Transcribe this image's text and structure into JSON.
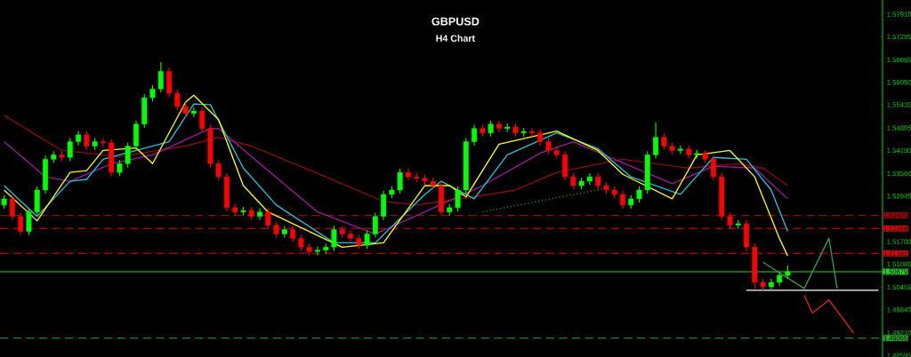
{
  "chart_data": {
    "type": "candlestick",
    "title": "GBPUSD",
    "subtitle": "H4 Chart",
    "categories": [
      null,
      null,
      null,
      null,
      null,
      null,
      null,
      null,
      null,
      null,
      null,
      null,
      null,
      null,
      null,
      null,
      null,
      null,
      null,
      null,
      null,
      null,
      null,
      null,
      null,
      null,
      null,
      null,
      null,
      null,
      null,
      null,
      null,
      null,
      null,
      null,
      null,
      null,
      null,
      null,
      null,
      null,
      null,
      null,
      null,
      null,
      null,
      null,
      null,
      null,
      null,
      null,
      null,
      null,
      null,
      null,
      null,
      null,
      null,
      null,
      null,
      null,
      null,
      null,
      null,
      null,
      null,
      null,
      null,
      null,
      null,
      null,
      null,
      null,
      null,
      null,
      null,
      null,
      null,
      null,
      null,
      null,
      null,
      null,
      null,
      null,
      null,
      null,
      null,
      null,
      null,
      null,
      null,
      null,
      null,
      null,
      null,
      null,
      null,
      null,
      null,
      null,
      null,
      null,
      null,
      null,
      null
    ],
    "ohlc": [
      [
        1.527,
        1.5297,
        1.526,
        1.5287
      ],
      [
        1.5287,
        1.5297,
        1.5229,
        1.5239
      ],
      [
        1.5239,
        1.5249,
        1.5188,
        1.5198
      ],
      [
        1.5198,
        1.5261,
        1.5188,
        1.5251
      ],
      [
        1.5251,
        1.5321,
        1.5241,
        1.5311
      ],
      [
        1.5311,
        1.5405,
        1.5301,
        1.5395
      ],
      [
        1.5395,
        1.5417,
        1.5385,
        1.5407
      ],
      [
        1.5407,
        1.5417,
        1.539,
        1.54
      ],
      [
        1.54,
        1.5453,
        1.539,
        1.5443
      ],
      [
        1.5443,
        1.5472,
        1.5433,
        1.5462
      ],
      [
        1.5462,
        1.5472,
        1.5421,
        1.5431
      ],
      [
        1.5431,
        1.5453,
        1.5421,
        1.5443
      ],
      [
        1.5443,
        1.5453,
        1.543,
        1.544
      ],
      [
        1.544,
        1.545,
        1.5349,
        1.5359
      ],
      [
        1.5359,
        1.5393,
        1.5349,
        1.5383
      ],
      [
        1.5383,
        1.5441,
        1.5373,
        1.5431
      ],
      [
        1.5431,
        1.5501,
        1.5421,
        1.5491
      ],
      [
        1.5491,
        1.5573,
        1.5481,
        1.5563
      ],
      [
        1.5563,
        1.5597,
        1.5553,
        1.5587
      ],
      [
        1.5587,
        1.566,
        1.5577,
        1.5635
      ],
      [
        1.5635,
        1.5645,
        1.5565,
        1.5575
      ],
      [
        1.5575,
        1.5585,
        1.5529,
        1.5539
      ],
      [
        1.5539,
        1.5549,
        1.551,
        1.552
      ],
      [
        1.552,
        1.5537,
        1.551,
        1.5527
      ],
      [
        1.5527,
        1.5537,
        1.5469,
        1.5479
      ],
      [
        1.5479,
        1.5489,
        1.5373,
        1.5383
      ],
      [
        1.5383,
        1.5393,
        1.5337,
        1.5347
      ],
      [
        1.5347,
        1.5357,
        1.5253,
        1.5263
      ],
      [
        1.5263,
        1.5273,
        1.5241,
        1.5251
      ],
      [
        1.5251,
        1.5265,
        1.5241,
        1.5255
      ],
      [
        1.5255,
        1.5265,
        1.5229,
        1.5239
      ],
      [
        1.5239,
        1.5261,
        1.5229,
        1.5251
      ],
      [
        1.5251,
        1.5261,
        1.5205,
        1.5215
      ],
      [
        1.5215,
        1.5225,
        1.5181,
        1.5191
      ],
      [
        1.5191,
        1.5213,
        1.5181,
        1.5203
      ],
      [
        1.5203,
        1.5213,
        1.5169,
        1.5179
      ],
      [
        1.5179,
        1.5189,
        1.5145,
        1.5155
      ],
      [
        1.5155,
        1.5165,
        1.5133,
        1.5143
      ],
      [
        1.5143,
        1.5157,
        1.5133,
        1.5147
      ],
      [
        1.5147,
        1.5165,
        1.5137,
        1.5155
      ],
      [
        1.5155,
        1.5213,
        1.5145,
        1.5203
      ],
      [
        1.5203,
        1.5213,
        1.5181,
        1.5191
      ],
      [
        1.5191,
        1.5201,
        1.5169,
        1.5179
      ],
      [
        1.5179,
        1.5189,
        1.515,
        1.516
      ],
      [
        1.516,
        1.5201,
        1.515,
        1.5191
      ],
      [
        1.5191,
        1.5249,
        1.5181,
        1.5239
      ],
      [
        1.5239,
        1.5309,
        1.5229,
        1.5299
      ],
      [
        1.5299,
        1.5321,
        1.5289,
        1.5311
      ],
      [
        1.5311,
        1.5369,
        1.5301,
        1.5359
      ],
      [
        1.5359,
        1.5369,
        1.5337,
        1.5347
      ],
      [
        1.5347,
        1.5357,
        1.5333,
        1.5343
      ],
      [
        1.5343,
        1.5353,
        1.5325,
        1.5335
      ],
      [
        1.5335,
        1.5345,
        1.5313,
        1.5323
      ],
      [
        1.5323,
        1.5333,
        1.5241,
        1.5251
      ],
      [
        1.5251,
        1.5273,
        1.5241,
        1.5263
      ],
      [
        1.5263,
        1.5321,
        1.5253,
        1.5311
      ],
      [
        1.5311,
        1.5453,
        1.5301,
        1.5443
      ],
      [
        1.5443,
        1.5489,
        1.5433,
        1.5479
      ],
      [
        1.5479,
        1.5489,
        1.5457,
        1.5467
      ],
      [
        1.5467,
        1.5501,
        1.5457,
        1.5491
      ],
      [
        1.5491,
        1.5501,
        1.5469,
        1.5479
      ],
      [
        1.5479,
        1.5493,
        1.5469,
        1.5483
      ],
      [
        1.5483,
        1.5493,
        1.5457,
        1.5467
      ],
      [
        1.5467,
        1.5481,
        1.5457,
        1.5471
      ],
      [
        1.5471,
        1.5481,
        1.5457,
        1.5467
      ],
      [
        1.5467,
        1.5477,
        1.5433,
        1.5443
      ],
      [
        1.5443,
        1.5453,
        1.5409,
        1.5419
      ],
      [
        1.5419,
        1.5429,
        1.5397,
        1.5407
      ],
      [
        1.5407,
        1.5417,
        1.5337,
        1.5347
      ],
      [
        1.5347,
        1.5357,
        1.5313,
        1.5323
      ],
      [
        1.5323,
        1.5345,
        1.5313,
        1.5335
      ],
      [
        1.5335,
        1.5357,
        1.5325,
        1.5347
      ],
      [
        1.5347,
        1.5357,
        1.5313,
        1.5323
      ],
      [
        1.5323,
        1.5333,
        1.5301,
        1.5311
      ],
      [
        1.5311,
        1.5321,
        1.5289,
        1.5299
      ],
      [
        1.5299,
        1.5309,
        1.526,
        1.527
      ],
      [
        1.527,
        1.5297,
        1.526,
        1.5287
      ],
      [
        1.5287,
        1.5321,
        1.5277,
        1.5311
      ],
      [
        1.5311,
        1.5417,
        1.5301,
        1.5407
      ],
      [
        1.5407,
        1.5495,
        1.5397,
        1.5455
      ],
      [
        1.5455,
        1.5465,
        1.5421,
        1.5431
      ],
      [
        1.5431,
        1.5441,
        1.5409,
        1.5419
      ],
      [
        1.5419,
        1.5433,
        1.5409,
        1.5423
      ],
      [
        1.5423,
        1.5433,
        1.5397,
        1.5407
      ],
      [
        1.5407,
        1.5421,
        1.5397,
        1.5411
      ],
      [
        1.5411,
        1.5421,
        1.5385,
        1.5395
      ],
      [
        1.5395,
        1.5405,
        1.5337,
        1.5347
      ],
      [
        1.5347,
        1.5357,
        1.5229,
        1.5239
      ],
      [
        1.5239,
        1.5249,
        1.5205,
        1.5215
      ],
      [
        1.5215,
        1.5229,
        1.5205,
        1.5219
      ],
      [
        1.5219,
        1.5229,
        1.5145,
        1.5155
      ],
      [
        1.5155,
        1.5165,
        1.5041,
        1.5059
      ],
      [
        1.5059,
        1.5069,
        1.5037,
        1.5047
      ],
      [
        1.5047,
        1.5069,
        1.5037,
        1.5059
      ],
      [
        1.5059,
        1.5088,
        1.5049,
        1.5078
      ],
      [
        1.5078,
        1.5105,
        1.5068,
        1.5088
      ],
      null,
      null,
      null,
      null,
      null,
      null,
      null,
      null,
      null,
      null,
      null
    ],
    "series": [
      {
        "type": "line",
        "color": "#8b0a0a",
        "values": [
          1.5515,
          null,
          null,
          null,
          null,
          null,
          null,
          1.5419,
          null,
          null,
          null,
          null,
          null,
          null,
          1.5402,
          null,
          null,
          null,
          null,
          null,
          null,
          null,
          1.5431,
          null,
          null,
          null,
          1.5455,
          null,
          null,
          null,
          1.5431,
          null,
          null,
          null,
          null,
          null,
          null,
          null,
          null,
          1.5347,
          null,
          null,
          null,
          null,
          null,
          null,
          1.528,
          null,
          null,
          null,
          1.527,
          null,
          null,
          null,
          null,
          null,
          1.5289,
          null,
          null,
          null,
          null,
          null,
          1.5311,
          null,
          null,
          null,
          null,
          1.5359,
          null,
          null,
          null,
          null,
          null,
          null,
          null,
          1.5395,
          null,
          null,
          null,
          null,
          null,
          null,
          null,
          1.5371,
          null,
          null,
          null,
          null,
          null,
          1.5383,
          null,
          null,
          1.5371,
          null,
          null,
          1.5323,
          null,
          null,
          null,
          null,
          null,
          null,
          null,
          null,
          null,
          null,
          null
        ]
      },
      {
        "type": "line",
        "color": "#9b1a9b",
        "values": [
          1.5443,
          null,
          null,
          null,
          null,
          1.5347,
          null,
          null,
          1.5335,
          null,
          null,
          null,
          null,
          1.5383,
          null,
          null,
          null,
          null,
          1.5407,
          null,
          null,
          null,
          null,
          null,
          null,
          1.5479,
          1.5479,
          null,
          null,
          null,
          null,
          1.5383,
          null,
          null,
          null,
          null,
          null,
          null,
          1.5251,
          null,
          null,
          null,
          null,
          null,
          null,
          1.5191,
          null,
          null,
          null,
          null,
          null,
          1.5251,
          null,
          null,
          null,
          null,
          null,
          null,
          1.5323,
          null,
          null,
          null,
          null,
          null,
          null,
          1.5412,
          null,
          null,
          null,
          1.5443,
          null,
          null,
          null,
          null,
          1.5395,
          null,
          null,
          null,
          null,
          null,
          null,
          1.5328,
          null,
          null,
          null,
          null,
          1.5376,
          null,
          null,
          null,
          null,
          1.5371,
          null,
          null,
          null,
          1.5287,
          null,
          null,
          null,
          null,
          null,
          null,
          null,
          null,
          null,
          null,
          null
        ]
      },
      {
        "type": "line",
        "color": "#22c4d8",
        "values": [
          1.5323,
          null,
          null,
          null,
          1.5239,
          null,
          null,
          null,
          1.5335,
          null,
          1.534,
          null,
          1.5395,
          null,
          null,
          null,
          1.5419,
          null,
          null,
          null,
          1.5443,
          null,
          null,
          1.5546,
          null,
          1.5544,
          null,
          null,
          null,
          1.5371,
          null,
          null,
          null,
          1.527,
          null,
          null,
          null,
          null,
          null,
          null,
          1.5167,
          null,
          null,
          null,
          null,
          1.5167,
          null,
          null,
          null,
          null,
          null,
          1.5299,
          null,
          1.5335,
          null,
          null,
          null,
          1.5287,
          null,
          null,
          null,
          1.5407,
          null,
          null,
          null,
          null,
          null,
          1.5467,
          null,
          null,
          null,
          null,
          1.5424,
          null,
          null,
          null,
          1.5347,
          null,
          null,
          null,
          null,
          null,
          1.5299,
          null,
          null,
          null,
          1.54,
          null,
          null,
          null,
          1.5395,
          null,
          null,
          1.5311,
          null,
          1.5198,
          null,
          null,
          null,
          null,
          null,
          null,
          null,
          null,
          null,
          null,
          null
        ]
      },
      {
        "type": "line",
        "color": "#ffff00",
        "values": [
          1.5311,
          null,
          null,
          null,
          1.5227,
          null,
          null,
          null,
          1.5359,
          null,
          1.5364,
          null,
          1.5419,
          null,
          null,
          null,
          1.5426,
          null,
          1.5383,
          null,
          null,
          null,
          1.5551,
          1.557,
          null,
          null,
          1.5503,
          null,
          null,
          1.5323,
          null,
          null,
          1.5251,
          null,
          null,
          null,
          null,
          null,
          null,
          null,
          null,
          1.5155,
          null,
          null,
          null,
          null,
          1.5167,
          null,
          null,
          null,
          null,
          1.5323,
          null,
          null,
          1.5323,
          null,
          1.5292,
          null,
          null,
          null,
          1.5436,
          null,
          null,
          null,
          null,
          null,
          null,
          1.5472,
          null,
          null,
          null,
          null,
          1.5419,
          null,
          null,
          1.5354,
          null,
          null,
          null,
          null,
          null,
          1.5287,
          null,
          null,
          1.5407,
          null,
          null,
          null,
          1.5419,
          null,
          null,
          1.5347,
          null,
          null,
          1.5179,
          1.5131,
          null,
          null,
          null,
          null,
          null,
          null,
          null,
          null,
          null,
          null,
          null
        ]
      },
      {
        "type": "line",
        "color": "#1f8a1f",
        "line_style": "dotted",
        "values": [
          null,
          null,
          null,
          null,
          null,
          null,
          null,
          null,
          null,
          null,
          null,
          null,
          null,
          null,
          null,
          null,
          null,
          null,
          null,
          null,
          null,
          null,
          null,
          null,
          null,
          null,
          null,
          null,
          null,
          null,
          null,
          null,
          null,
          null,
          null,
          null,
          null,
          null,
          null,
          null,
          null,
          null,
          null,
          null,
          null,
          null,
          null,
          null,
          null,
          null,
          null,
          null,
          null,
          null,
          null,
          null,
          null,
          null,
          1.5251,
          null,
          null,
          null,
          null,
          null,
          null,
          null,
          null,
          null,
          null,
          null,
          null,
          null,
          null,
          1.5316,
          null,
          null,
          null,
          null,
          null,
          null,
          null,
          null,
          null,
          null,
          null,
          null,
          null,
          null,
          null,
          null,
          null,
          null,
          null,
          null,
          null,
          null,
          null,
          null,
          null,
          null,
          null,
          null,
          null,
          null,
          null,
          null,
          null
        ]
      },
      {
        "type": "line",
        "color": "#ffffff",
        "values": [
          null,
          null,
          null,
          null,
          null,
          null,
          null,
          null,
          null,
          null,
          null,
          null,
          null,
          null,
          null,
          null,
          null,
          null,
          null,
          null,
          null,
          null,
          null,
          null,
          null,
          null,
          null,
          null,
          null,
          null,
          null,
          null,
          null,
          null,
          null,
          null,
          null,
          null,
          null,
          null,
          null,
          null,
          null,
          null,
          null,
          null,
          null,
          null,
          null,
          null,
          null,
          null,
          null,
          null,
          null,
          null,
          null,
          null,
          null,
          null,
          null,
          null,
          null,
          null,
          null,
          null,
          null,
          null,
          null,
          null,
          null,
          null,
          null,
          null,
          null,
          null,
          null,
          null,
          null,
          null,
          null,
          null,
          null,
          null,
          null,
          null,
          null,
          null,
          null,
          null,
          1.5037,
          null,
          null,
          null,
          null,
          null,
          null,
          null,
          null,
          null,
          null,
          null,
          null,
          null,
          null,
          null,
          1.5037
        ]
      },
      {
        "type": "line",
        "color": "#2ea043",
        "values": [
          null,
          null,
          null,
          null,
          null,
          null,
          null,
          null,
          null,
          null,
          null,
          null,
          null,
          null,
          null,
          null,
          null,
          null,
          null,
          null,
          null,
          null,
          null,
          null,
          null,
          null,
          null,
          null,
          null,
          null,
          null,
          null,
          null,
          null,
          null,
          null,
          null,
          null,
          null,
          null,
          null,
          null,
          null,
          null,
          null,
          null,
          null,
          null,
          null,
          null,
          null,
          null,
          null,
          null,
          null,
          null,
          null,
          null,
          null,
          null,
          null,
          null,
          null,
          null,
          null,
          null,
          null,
          null,
          null,
          null,
          null,
          null,
          null,
          null,
          null,
          null,
          null,
          null,
          null,
          null,
          null,
          null,
          null,
          null,
          null,
          null,
          null,
          null,
          null,
          null,
          null,
          null,
          1.5114,
          null,
          null,
          null,
          null,
          1.5042,
          null,
          null,
          1.5179,
          1.5042,
          null,
          null,
          null,
          null,
          null
        ]
      },
      {
        "type": "line",
        "color": "#e02020",
        "values": [
          null,
          null,
          null,
          null,
          null,
          null,
          null,
          null,
          null,
          null,
          null,
          null,
          null,
          null,
          null,
          null,
          null,
          null,
          null,
          null,
          null,
          null,
          null,
          null,
          null,
          null,
          null,
          null,
          null,
          null,
          null,
          null,
          null,
          null,
          null,
          null,
          null,
          null,
          null,
          null,
          null,
          null,
          null,
          null,
          null,
          null,
          null,
          null,
          null,
          null,
          null,
          null,
          null,
          null,
          null,
          null,
          null,
          null,
          null,
          null,
          null,
          null,
          null,
          null,
          null,
          null,
          null,
          null,
          null,
          null,
          null,
          null,
          null,
          null,
          null,
          null,
          null,
          null,
          null,
          null,
          null,
          null,
          null,
          null,
          null,
          null,
          null,
          null,
          null,
          null,
          null,
          null,
          null,
          null,
          null,
          null,
          null,
          1.5023,
          1.4975,
          null,
          1.5011,
          null,
          null,
          1.492,
          null,
          null,
          null
        ]
      }
    ],
    "ref_lines": [
      {
        "axis": "y",
        "value": 1.5242,
        "label": "1.52420",
        "color": "#a00000",
        "line_style": "dashed"
      },
      {
        "axis": "y",
        "value": 1.52059,
        "label": "1.52059",
        "color": "#e00000",
        "line_style": "dashed"
      },
      {
        "axis": "y",
        "value": 1.51381,
        "label": "1.51381",
        "color": "#e00000",
        "line_style": "dashed"
      },
      {
        "axis": "y",
        "value": 1.50879,
        "label": "1.50879",
        "color": "#2fd12f",
        "line_style": "solid"
      },
      {
        "axis": "y",
        "value": 1.49065,
        "label": "1.49065",
        "color": "#2fa52f",
        "line_style": "dashed"
      }
    ],
    "ylim": [
      1.4855,
      1.583
    ],
    "yticks": [
      {
        "value": 1.5791,
        "label": "1.57910"
      },
      1.57295,
      1.56665,
      {
        "value": 1.5605,
        "label": "1.56050"
      },
      1.55435,
      {
        "value": 1.54805,
        "label": "1.54805"
      },
      {
        "value": 1.5419,
        "label": "1.54190"
      },
      {
        "value": 1.5356,
        "label": "1.53560"
      },
      1.52945,
      {
        "value": 1.517,
        "label": "1.51700"
      },
      1.51085,
      1.50455,
      {
        "value": 1.4984,
        "label": "1.49840"
      },
      {
        "value": 1.4921,
        "label": "1.49210"
      },
      1.48595
    ],
    "tick_labels": "y"
  }
}
